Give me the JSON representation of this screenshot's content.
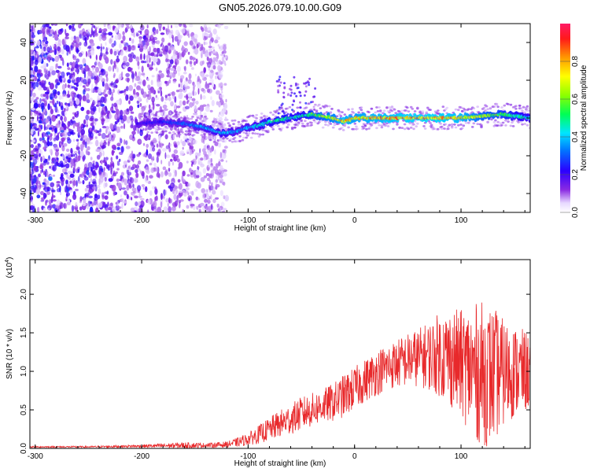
{
  "figure_title": "GN05.2026.079.10.00.G09",
  "chart_data": [
    {
      "type": "heatmap",
      "title": "GN05.2026.079.10.00.G09",
      "xlabel": "Height of straight line (km)",
      "ylabel": "Frequency (Hz)",
      "xlim": [
        -305,
        165
      ],
      "ylim": [
        -50,
        50
      ],
      "x_ticks": [
        -300,
        -200,
        -100,
        0,
        100
      ],
      "x_tick_labels": [
        "-300",
        "-200",
        "-100",
        "0",
        "100"
      ],
      "y_ticks": [
        -40,
        -20,
        0,
        20,
        40
      ],
      "y_tick_labels": [
        "-40",
        "-20",
        "0",
        "20",
        "40"
      ],
      "colorbar": {
        "label": "Normalized spectral amplitude",
        "range": [
          0,
          1
        ],
        "ticks": [
          0,
          0.2,
          0.4,
          0.6,
          0.8
        ],
        "tick_labels": [
          "0.0",
          "0.2",
          "0.4",
          "0.6",
          "0.8"
        ]
      },
      "signal_track": {
        "x": [
          -205,
          -180,
          -160,
          -140,
          -125,
          -110,
          -100,
          -90,
          -80,
          -70,
          -60,
          -50,
          -40,
          -30,
          -20,
          -10,
          0,
          20,
          50,
          80,
          100,
          120,
          140,
          165
        ],
        "frequency": [
          -3,
          -2,
          -3,
          -5,
          -8,
          -7,
          -5,
          -4,
          -2,
          -1,
          0,
          1,
          2,
          1,
          0,
          -2,
          0,
          0,
          0,
          0,
          0,
          1,
          2,
          0
        ],
        "amplitude": [
          0.2,
          0.28,
          0.35,
          0.4,
          0.45,
          0.38,
          0.4,
          0.45,
          0.5,
          0.55,
          0.5,
          0.5,
          0.6,
          0.7,
          0.75,
          0.85,
          0.8,
          0.85,
          0.9,
          0.9,
          0.85,
          0.7,
          0.6,
          0.45
        ]
      },
      "noise_region_x": [
        -305,
        -120
      ]
    },
    {
      "type": "line",
      "xlabel": "Height of straight line (km)",
      "ylabel": "SNR (10 * v/v)",
      "y_scale_label": "(x10",
      "y_scale_exponent": "4",
      "xlim": [
        -305,
        165
      ],
      "ylim": [
        0,
        2.45
      ],
      "x_ticks": [
        -300,
        -200,
        -100,
        0,
        100
      ],
      "x_tick_labels": [
        "-300",
        "-200",
        "-100",
        "0",
        "100"
      ],
      "y_ticks": [
        0,
        0.5,
        1.0,
        1.5,
        2.0
      ],
      "y_tick_labels": [
        "0.0",
        "0.5",
        "1.0",
        "1.5",
        "2.0"
      ],
      "color": "#e8292b",
      "series": [
        {
          "name": "SNR",
          "x": [
            -305,
            -250,
            -200,
            -160,
            -140,
            -120,
            -110,
            -100,
            -90,
            -80,
            -70,
            -60,
            -50,
            -40,
            -30,
            -20,
            -10,
            0,
            10,
            20,
            30,
            40,
            50,
            60,
            70,
            80,
            90,
            100,
            110,
            120,
            130,
            140,
            150,
            165
          ],
          "mean": [
            0.02,
            0.02,
            0.03,
            0.04,
            0.04,
            0.05,
            0.08,
            0.12,
            0.18,
            0.25,
            0.32,
            0.38,
            0.45,
            0.5,
            0.55,
            0.6,
            0.68,
            0.78,
            0.88,
            0.98,
            1.05,
            1.1,
            1.15,
            1.18,
            1.2,
            1.22,
            1.18,
            1.1,
            1.02,
            0.96,
            0.95,
            0.98,
            1.0,
            1.0
          ],
          "amp": [
            0.01,
            0.01,
            0.02,
            0.04,
            0.03,
            0.04,
            0.06,
            0.08,
            0.12,
            0.15,
            0.18,
            0.2,
            0.22,
            0.22,
            0.22,
            0.25,
            0.28,
            0.28,
            0.28,
            0.3,
            0.3,
            0.32,
            0.35,
            0.38,
            0.45,
            0.55,
            0.65,
            0.7,
            0.85,
            0.95,
            0.9,
            0.7,
            0.6,
            0.5
          ]
        }
      ]
    }
  ]
}
